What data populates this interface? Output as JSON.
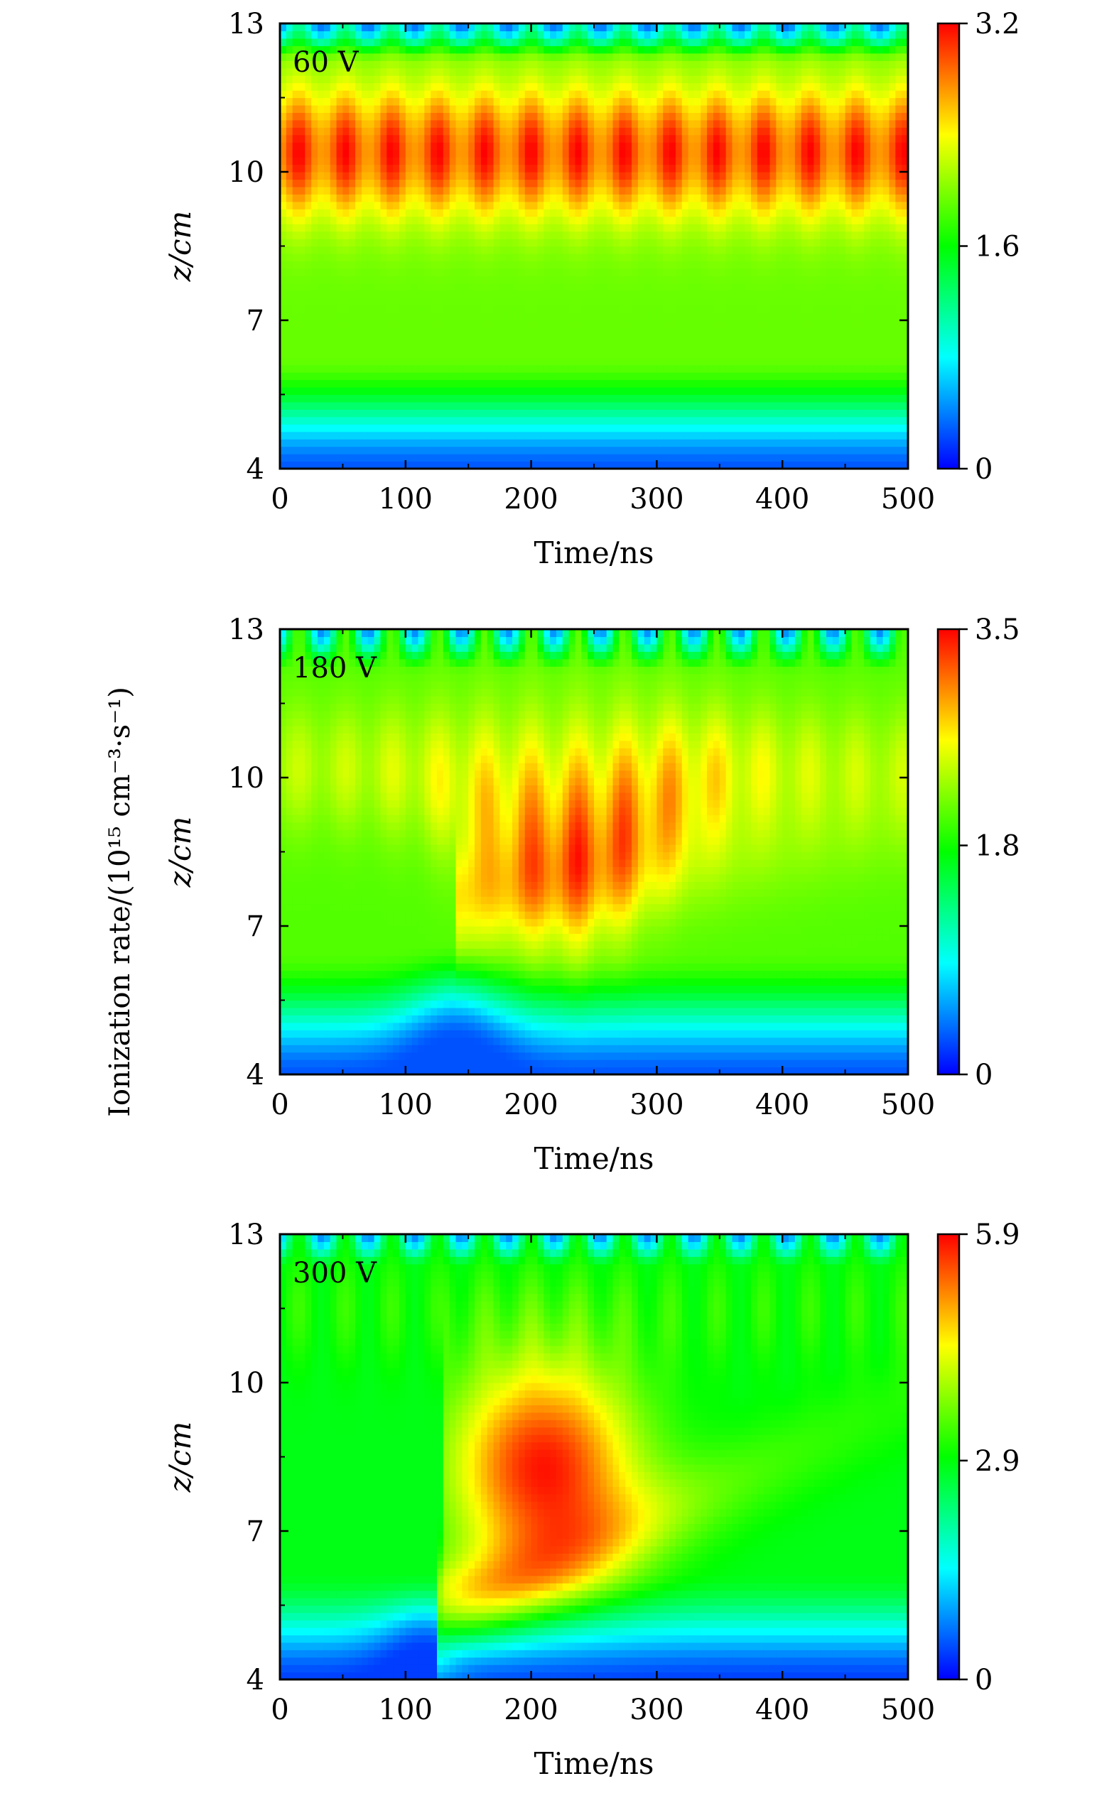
{
  "figure": {
    "shared_ylabel": "Ionization rate/(10¹⁵ cm⁻³·s⁻¹)"
  },
  "chart_data": [
    {
      "type": "heatmap",
      "panel_label": "60 V",
      "xlabel": "Time/ns",
      "ylabel": "z/cm",
      "xlim": [
        0,
        500
      ],
      "ylim": [
        4,
        13
      ],
      "x_ticks": [
        0,
        100,
        200,
        300,
        400,
        500
      ],
      "y_ticks": [
        4,
        7,
        10,
        13
      ],
      "colorbar": {
        "min": 0,
        "max": 3.2,
        "ticks": [
          0,
          1.6,
          3.2
        ],
        "tick_labels": [
          "0",
          "1.6",
          "3.2"
        ]
      },
      "colormap": [
        "#0000ff",
        "#00ffff",
        "#00ff00",
        "#ffff00",
        "#ff0000"
      ],
      "features": {
        "oscillation_period_ns": 37,
        "band_z_center_cm": 10.5,
        "peak_value": 3.2,
        "collapse_time_ns": null
      }
    },
    {
      "type": "heatmap",
      "panel_label": "180 V",
      "xlabel": "Time/ns",
      "ylabel": "z/cm",
      "xlim": [
        0,
        500
      ],
      "ylim": [
        4,
        13
      ],
      "x_ticks": [
        0,
        100,
        200,
        300,
        400,
        500
      ],
      "y_ticks": [
        4,
        7,
        10,
        13
      ],
      "colorbar": {
        "min": 0,
        "max": 3.5,
        "ticks": [
          0,
          1.8,
          3.5
        ],
        "tick_labels": [
          "0",
          "1.8",
          "3.5"
        ]
      },
      "colormap": [
        "#0000ff",
        "#00ffff",
        "#00ff00",
        "#ffff00",
        "#ff0000"
      ],
      "features": {
        "oscillation_period_ns": 37,
        "band_z_center_cm": 10.5,
        "peak_value": 3.5,
        "collapse_time_ns": 140
      }
    },
    {
      "type": "heatmap",
      "panel_label": "300 V",
      "xlabel": "Time/ns",
      "ylabel": "z/cm",
      "xlim": [
        0,
        500
      ],
      "ylim": [
        4,
        13
      ],
      "x_ticks": [
        0,
        100,
        200,
        300,
        400,
        500
      ],
      "y_ticks": [
        4,
        7,
        10,
        13
      ],
      "colorbar": {
        "min": 0,
        "max": 5.9,
        "ticks": [
          0,
          2.9,
          5.9
        ],
        "tick_labels": [
          "0",
          "2.9",
          "5.9"
        ]
      },
      "colormap": [
        "#0000ff",
        "#00ffff",
        "#00ff00",
        "#ffff00",
        "#ff0000"
      ],
      "features": {
        "oscillation_period_ns": 37,
        "band_z_center_cm": 9.0,
        "peak_value": 5.9,
        "collapse_time_ns": 120
      }
    }
  ]
}
